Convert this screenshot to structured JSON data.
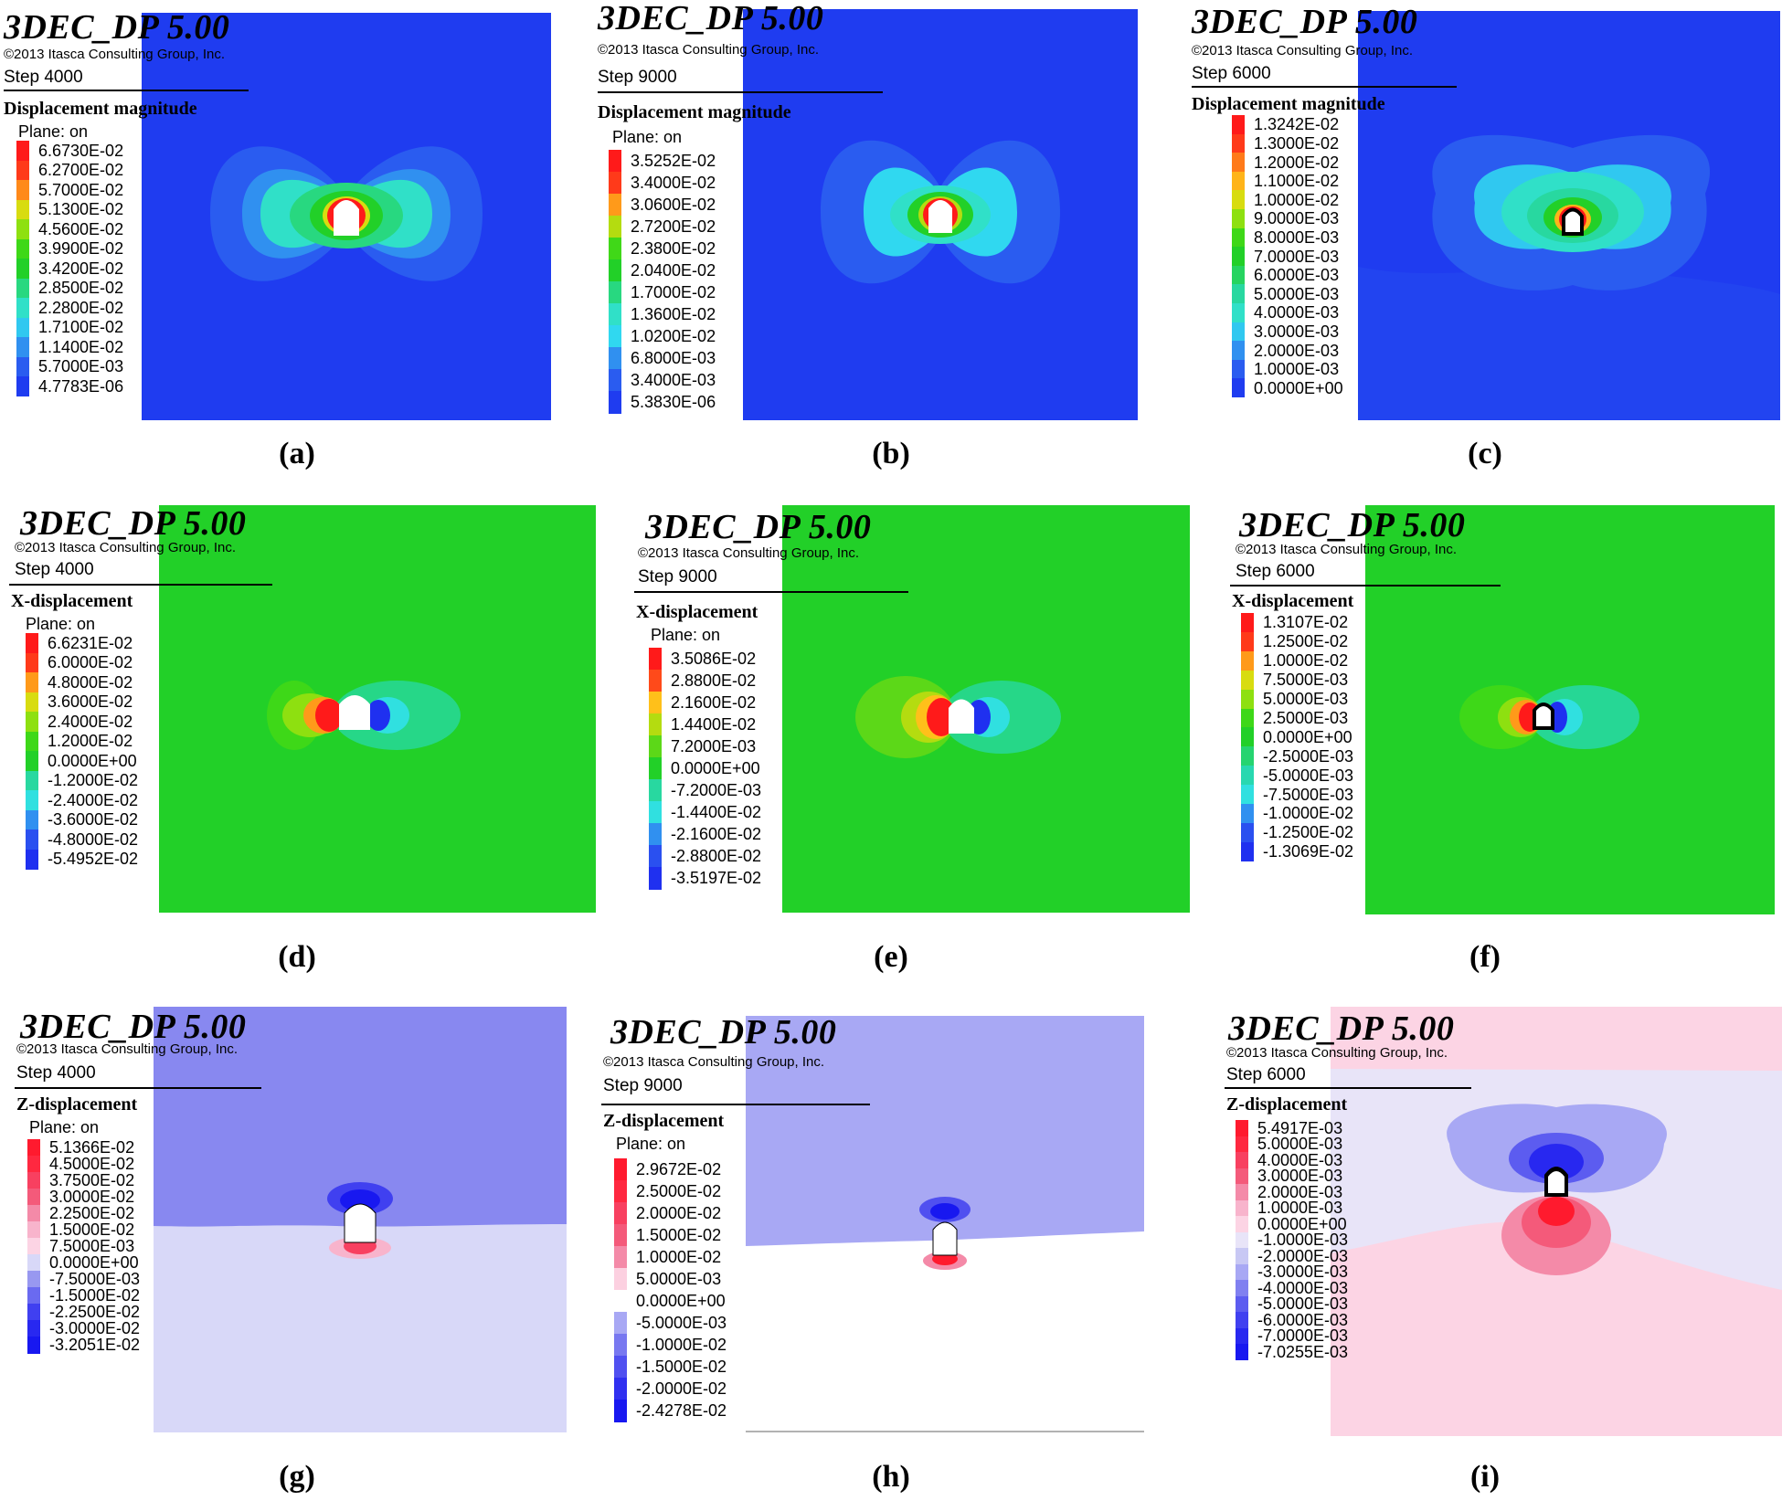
{
  "figure": {
    "panels": [
      {
        "caption": "(a)",
        "software": "3DEC_DP 5.00",
        "copyright": "©2013 Itasca Consulting Group, Inc.",
        "step": "Step 4000",
        "quantity": "Displacement magnitude",
        "plane": "Plane: on",
        "legend": [
          {
            "value": "6.6730E-02",
            "color": "#ff1a1a"
          },
          {
            "value": "6.2700E-02",
            "color": "#ff3a1a"
          },
          {
            "value": "5.7000E-02",
            "color": "#ff8a1a"
          },
          {
            "value": "5.1300E-02",
            "color": "#d8dc10"
          },
          {
            "value": "4.5600E-02",
            "color": "#8ee010"
          },
          {
            "value": "3.9900E-02",
            "color": "#3ed818"
          },
          {
            "value": "3.4200E-02",
            "color": "#22d028"
          },
          {
            "value": "2.8500E-02",
            "color": "#28d880"
          },
          {
            "value": "2.2800E-02",
            "color": "#30e0c8"
          },
          {
            "value": "1.7100E-02",
            "color": "#30c8f0"
          },
          {
            "value": "1.1400E-02",
            "color": "#3090f0"
          },
          {
            "value": "5.7000E-03",
            "color": "#2a5cf0"
          },
          {
            "value": "4.7783E-06",
            "color": "#1f3cf0"
          }
        ]
      },
      {
        "caption": "(b)",
        "software": "3DEC_DP 5.00",
        "copyright": "©2013 Itasca Consulting Group, Inc.",
        "step": "Step 9000",
        "quantity": "Displacement magnitude",
        "plane": "Plane: on",
        "legend": [
          {
            "value": "3.5252E-02",
            "color": "#ff1a1a"
          },
          {
            "value": "3.4000E-02",
            "color": "#ff3a1a"
          },
          {
            "value": "3.0600E-02",
            "color": "#ff9a1a"
          },
          {
            "value": "2.7200E-02",
            "color": "#b4dc10"
          },
          {
            "value": "2.3800E-02",
            "color": "#40d818"
          },
          {
            "value": "2.0400E-02",
            "color": "#22d028"
          },
          {
            "value": "1.7000E-02",
            "color": "#28d880"
          },
          {
            "value": "1.3600E-02",
            "color": "#30e0c8"
          },
          {
            "value": "1.0200E-02",
            "color": "#30d8f0"
          },
          {
            "value": "6.8000E-03",
            "color": "#3090f0"
          },
          {
            "value": "3.4000E-03",
            "color": "#2a5cf0"
          },
          {
            "value": "5.3830E-06",
            "color": "#1f3cf0"
          }
        ]
      },
      {
        "caption": "(c)",
        "software": "3DEC_DP 5.00",
        "copyright": "©2013 Itasca Consulting Group, Inc.",
        "step": "Step 6000",
        "quantity": "Displacement magnitude",
        "plane": "Plane: on",
        "legend": [
          {
            "value": "1.3242E-02",
            "color": "#ff1a1a"
          },
          {
            "value": "1.3000E-02",
            "color": "#ff3a1a"
          },
          {
            "value": "1.2000E-02",
            "color": "#ff7a1a"
          },
          {
            "value": "1.1000E-02",
            "color": "#ffb41a"
          },
          {
            "value": "1.0000E-02",
            "color": "#d8dc10"
          },
          {
            "value": "9.0000E-03",
            "color": "#8ee010"
          },
          {
            "value": "8.0000E-03",
            "color": "#3ed818"
          },
          {
            "value": "7.0000E-03",
            "color": "#22d028"
          },
          {
            "value": "6.0000E-03",
            "color": "#26d460"
          },
          {
            "value": "5.0000E-03",
            "color": "#28d8a0"
          },
          {
            "value": "4.0000E-03",
            "color": "#30e0c8"
          },
          {
            "value": "3.0000E-03",
            "color": "#30c8f0"
          },
          {
            "value": "2.0000E-03",
            "color": "#3090f0"
          },
          {
            "value": "1.0000E-03",
            "color": "#2a5cf0"
          },
          {
            "value": "0.0000E+00",
            "color": "#1f3cf0"
          }
        ]
      },
      {
        "caption": "(d)",
        "software": "3DEC_DP 5.00",
        "copyright": "©2013 Itasca Consulting Group, Inc.",
        "step": "Step 4000",
        "quantity": "X-displacement",
        "plane": "Plane: on",
        "legend": [
          {
            "value": "6.6231E-02",
            "color": "#ff1a1a"
          },
          {
            "value": "6.0000E-02",
            "color": "#ff3a1a"
          },
          {
            "value": "4.8000E-02",
            "color": "#ff9a1a"
          },
          {
            "value": "3.6000E-02",
            "color": "#d8dc10"
          },
          {
            "value": "2.4000E-02",
            "color": "#8ee010"
          },
          {
            "value": "1.2000E-02",
            "color": "#3ed818"
          },
          {
            "value": "0.0000E+00",
            "color": "#22d028"
          },
          {
            "value": "-1.2000E-02",
            "color": "#28d8a0"
          },
          {
            "value": "-2.4000E-02",
            "color": "#30e0e0"
          },
          {
            "value": "-3.6000E-02",
            "color": "#3090f0"
          },
          {
            "value": "-4.8000E-02",
            "color": "#2a50f0"
          },
          {
            "value": "-5.4952E-02",
            "color": "#1f30f0"
          }
        ]
      },
      {
        "caption": "(e)",
        "software": "3DEC_DP 5.00",
        "copyright": "©2013 Itasca Consulting Group, Inc.",
        "step": "Step 9000",
        "quantity": "X-displacement",
        "plane": "Plane: on",
        "legend": [
          {
            "value": "3.5086E-02",
            "color": "#ff1a1a"
          },
          {
            "value": "2.8800E-02",
            "color": "#ff4a1a"
          },
          {
            "value": "2.1600E-02",
            "color": "#ffc01a"
          },
          {
            "value": "1.4400E-02",
            "color": "#b4dc10"
          },
          {
            "value": "7.2000E-03",
            "color": "#5cd818"
          },
          {
            "value": "0.0000E+00",
            "color": "#22d028"
          },
          {
            "value": "-7.2000E-03",
            "color": "#28d8a0"
          },
          {
            "value": "-1.4400E-02",
            "color": "#30e0e0"
          },
          {
            "value": "-2.1600E-02",
            "color": "#3090f0"
          },
          {
            "value": "-2.8800E-02",
            "color": "#2a50f0"
          },
          {
            "value": "-3.5197E-02",
            "color": "#1f30f0"
          }
        ]
      },
      {
        "caption": "(f)",
        "software": "3DEC_DP 5.00",
        "copyright": "©2013 Itasca Consulting Group, Inc.",
        "step": "Step 6000",
        "quantity": "X-displacement",
        "plane": "Plane: on",
        "legend": [
          {
            "value": "1.3107E-02",
            "color": "#ff1a1a"
          },
          {
            "value": "1.2500E-02",
            "color": "#ff3a1a"
          },
          {
            "value": "1.0000E-02",
            "color": "#ff9a1a"
          },
          {
            "value": "7.5000E-03",
            "color": "#d8dc10"
          },
          {
            "value": "5.0000E-03",
            "color": "#8ee010"
          },
          {
            "value": "2.5000E-03",
            "color": "#3ed818"
          },
          {
            "value": "0.0000E+00",
            "color": "#22d028"
          },
          {
            "value": "-2.5000E-03",
            "color": "#26d470"
          },
          {
            "value": "-5.0000E-03",
            "color": "#28d8b0"
          },
          {
            "value": "-7.5000E-03",
            "color": "#30e0e0"
          },
          {
            "value": "-1.0000E-02",
            "color": "#3090f0"
          },
          {
            "value": "-1.2500E-02",
            "color": "#2a50f0"
          },
          {
            "value": "-1.3069E-02",
            "color": "#1f30f0"
          }
        ]
      },
      {
        "caption": "(g)",
        "software": "3DEC_DP 5.00",
        "copyright": "©2013 Itasca Consulting Group, Inc.",
        "step": "Step 4000",
        "quantity": "Z-displacement",
        "plane": "Plane: on",
        "legend": [
          {
            "value": "5.1366E-02",
            "color": "#ff1a2e"
          },
          {
            "value": "4.5000E-02",
            "color": "#ff2840"
          },
          {
            "value": "3.7500E-02",
            "color": "#f84060"
          },
          {
            "value": "3.0000E-02",
            "color": "#f45a7a"
          },
          {
            "value": "2.2500E-02",
            "color": "#f48aa8"
          },
          {
            "value": "1.5000E-02",
            "color": "#f8b4cc"
          },
          {
            "value": "7.5000E-03",
            "color": "#fcd4e4"
          },
          {
            "value": "0.0000E+00",
            "color": "#d8d8f8"
          },
          {
            "value": "-7.5000E-03",
            "color": "#9898f0"
          },
          {
            "value": "-1.5000E-02",
            "color": "#6a6af0"
          },
          {
            "value": "-2.2500E-02",
            "color": "#4040f0"
          },
          {
            "value": "-3.0000E-02",
            "color": "#2828f0"
          },
          {
            "value": "-3.2051E-02",
            "color": "#1818f0"
          }
        ]
      },
      {
        "caption": "(h)",
        "software": "3DEC_DP 5.00",
        "copyright": "©2013 Itasca Consulting Group, Inc.",
        "step": "Step 9000",
        "quantity": "Z-displacement",
        "plane": "Plane: on",
        "legend": [
          {
            "value": "2.9672E-02",
            "color": "#ff1a2e"
          },
          {
            "value": "2.5000E-02",
            "color": "#ff2840"
          },
          {
            "value": "2.0000E-02",
            "color": "#f84060"
          },
          {
            "value": "1.5000E-02",
            "color": "#f45a7a"
          },
          {
            "value": "1.0000E-02",
            "color": "#f48aa8"
          },
          {
            "value": "5.0000E-03",
            "color": "#fcd0e0"
          },
          {
            "value": "0.0000E+00",
            "color": "#ffffff"
          },
          {
            "value": "-5.0000E-03",
            "color": "#a8a8f4"
          },
          {
            "value": "-1.0000E-02",
            "color": "#7878f0"
          },
          {
            "value": "-1.5000E-02",
            "color": "#5050f0"
          },
          {
            "value": "-2.0000E-02",
            "color": "#3030f0"
          },
          {
            "value": "-2.4278E-02",
            "color": "#1818f0"
          }
        ]
      },
      {
        "caption": "(i)",
        "software": "3DEC_DP 5.00",
        "copyright": "©2013 Itasca Consulting Group, Inc.",
        "step": "Step 6000",
        "quantity": "Z-displacement",
        "plane": "Plane: on",
        "legend": [
          {
            "value": "5.4917E-03",
            "color": "#ff1a2e"
          },
          {
            "value": "5.0000E-03",
            "color": "#ff2840"
          },
          {
            "value": "4.0000E-03",
            "color": "#f84060"
          },
          {
            "value": "3.0000E-03",
            "color": "#f45a7a"
          },
          {
            "value": "2.0000E-03",
            "color": "#f48aa8"
          },
          {
            "value": "1.0000E-03",
            "color": "#f8b4cc"
          },
          {
            "value": "0.0000E+00",
            "color": "#fcd4e4"
          },
          {
            "value": "-1.0000E-03",
            "color": "#e8e4f8"
          },
          {
            "value": "-2.0000E-03",
            "color": "#c8c8f4"
          },
          {
            "value": "-3.0000E-03",
            "color": "#a8a8f4"
          },
          {
            "value": "-4.0000E-03",
            "color": "#8080f0"
          },
          {
            "value": "-5.0000E-03",
            "color": "#5c5cf0"
          },
          {
            "value": "-6.0000E-03",
            "color": "#4040f0"
          },
          {
            "value": "-7.0000E-03",
            "color": "#2828f0"
          },
          {
            "value": "-7.0255E-03",
            "color": "#1818f0"
          }
        ]
      }
    ]
  }
}
